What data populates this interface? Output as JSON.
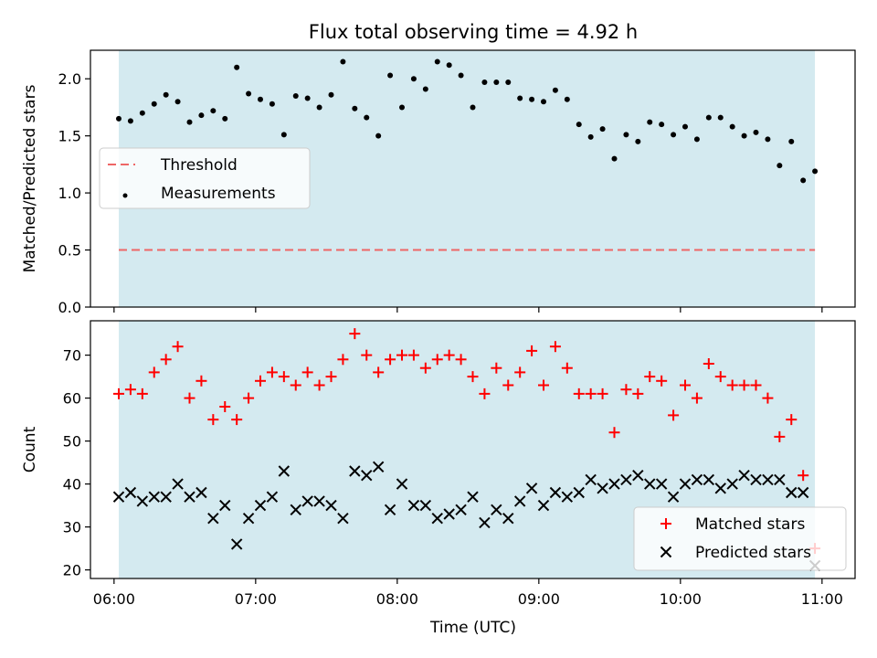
{
  "chart_data": {
    "title": "Flux total observing time = 4.92 h",
    "xlabel": "Time (UTC)",
    "x_ticks": [
      "06:00",
      "07:00",
      "08:00",
      "09:00",
      "10:00",
      "11:00"
    ],
    "xlim": [
      "05:50",
      "11:14"
    ],
    "observing_window": [
      "06:02",
      "10:57"
    ],
    "colors": {
      "window": "#d4eaf0",
      "threshold": "#ee6666",
      "measurements": "#000000",
      "matched": "#ff0000",
      "predicted": "#000000"
    },
    "panels": [
      {
        "type": "scatter",
        "ylabel": "Matched/Predicted stars",
        "ylim": [
          0.0,
          2.25
        ],
        "y_ticks": [
          "0.0",
          "0.5",
          "1.0",
          "1.5",
          "2.0"
        ],
        "legend_position": "center-left",
        "threshold": {
          "name": "Threshold",
          "value": 0.5,
          "x": [
            "06:02",
            "10:57"
          ]
        },
        "series": [
          {
            "name": "Measurements",
            "marker": "dot",
            "points": [
              [
                "06:02",
                1.65
              ],
              [
                "06:07",
                1.63
              ],
              [
                "06:12",
                1.7
              ],
              [
                "06:17",
                1.78
              ],
              [
                "06:22",
                1.86
              ],
              [
                "06:27",
                1.8
              ],
              [
                "06:32",
                1.62
              ],
              [
                "06:37",
                1.68
              ],
              [
                "06:42",
                1.72
              ],
              [
                "06:47",
                1.65
              ],
              [
                "06:52",
                2.1
              ],
              [
                "06:57",
                1.87
              ],
              [
                "07:02",
                1.82
              ],
              [
                "07:07",
                1.78
              ],
              [
                "07:12",
                1.51
              ],
              [
                "07:17",
                1.85
              ],
              [
                "07:22",
                1.83
              ],
              [
                "07:27",
                1.75
              ],
              [
                "07:32",
                1.86
              ],
              [
                "07:37",
                2.15
              ],
              [
                "07:42",
                1.74
              ],
              [
                "07:47",
                1.66
              ],
              [
                "07:52",
                1.5
              ],
              [
                "07:57",
                2.03
              ],
              [
                "08:02",
                1.75
              ],
              [
                "08:07",
                2.0
              ],
              [
                "08:12",
                1.91
              ],
              [
                "08:17",
                2.15
              ],
              [
                "08:22",
                2.12
              ],
              [
                "08:27",
                2.03
              ],
              [
                "08:32",
                1.75
              ],
              [
                "08:37",
                1.97
              ],
              [
                "08:42",
                1.97
              ],
              [
                "08:47",
                1.97
              ],
              [
                "08:52",
                1.83
              ],
              [
                "08:57",
                1.82
              ],
              [
                "09:02",
                1.8
              ],
              [
                "09:07",
                1.9
              ],
              [
                "09:12",
                1.82
              ],
              [
                "09:17",
                1.6
              ],
              [
                "09:22",
                1.49
              ],
              [
                "09:27",
                1.56
              ],
              [
                "09:32",
                1.3
              ],
              [
                "09:37",
                1.51
              ],
              [
                "09:42",
                1.45
              ],
              [
                "09:47",
                1.62
              ],
              [
                "09:52",
                1.6
              ],
              [
                "09:57",
                1.51
              ],
              [
                "10:02",
                1.58
              ],
              [
                "10:07",
                1.47
              ],
              [
                "10:12",
                1.66
              ],
              [
                "10:17",
                1.66
              ],
              [
                "10:22",
                1.58
              ],
              [
                "10:27",
                1.5
              ],
              [
                "10:32",
                1.53
              ],
              [
                "10:37",
                1.47
              ],
              [
                "10:42",
                1.24
              ],
              [
                "10:47",
                1.45
              ],
              [
                "10:52",
                1.11
              ],
              [
                "10:57",
                1.19
              ]
            ]
          }
        ]
      },
      {
        "type": "scatter",
        "ylabel": "Count",
        "ylim": [
          18,
          78
        ],
        "y_ticks": [
          "20",
          "30",
          "40",
          "50",
          "60",
          "70"
        ],
        "legend_position": "lower-right",
        "series": [
          {
            "name": "Matched stars",
            "marker": "plus",
            "points": [
              [
                "06:02",
                61
              ],
              [
                "06:07",
                62
              ],
              [
                "06:12",
                61
              ],
              [
                "06:17",
                66
              ],
              [
                "06:22",
                69
              ],
              [
                "06:27",
                72
              ],
              [
                "06:32",
                60
              ],
              [
                "06:37",
                64
              ],
              [
                "06:42",
                55
              ],
              [
                "06:47",
                58
              ],
              [
                "06:52",
                55
              ],
              [
                "06:57",
                60
              ],
              [
                "07:02",
                64
              ],
              [
                "07:07",
                66
              ],
              [
                "07:12",
                65
              ],
              [
                "07:17",
                63
              ],
              [
                "07:22",
                66
              ],
              [
                "07:27",
                63
              ],
              [
                "07:32",
                65
              ],
              [
                "07:37",
                69
              ],
              [
                "07:42",
                75
              ],
              [
                "07:47",
                70
              ],
              [
                "07:52",
                66
              ],
              [
                "07:57",
                69
              ],
              [
                "08:02",
                70
              ],
              [
                "08:07",
                70
              ],
              [
                "08:12",
                67
              ],
              [
                "08:17",
                69
              ],
              [
                "08:22",
                70
              ],
              [
                "08:27",
                69
              ],
              [
                "08:32",
                65
              ],
              [
                "08:37",
                61
              ],
              [
                "08:42",
                67
              ],
              [
                "08:47",
                63
              ],
              [
                "08:52",
                66
              ],
              [
                "08:57",
                71
              ],
              [
                "09:02",
                63
              ],
              [
                "09:07",
                72
              ],
              [
                "09:12",
                67
              ],
              [
                "09:17",
                61
              ],
              [
                "09:22",
                61
              ],
              [
                "09:27",
                61
              ],
              [
                "09:32",
                52
              ],
              [
                "09:37",
                62
              ],
              [
                "09:42",
                61
              ],
              [
                "09:47",
                65
              ],
              [
                "09:52",
                64
              ],
              [
                "09:57",
                56
              ],
              [
                "10:02",
                63
              ],
              [
                "10:07",
                60
              ],
              [
                "10:12",
                68
              ],
              [
                "10:17",
                65
              ],
              [
                "10:22",
                63
              ],
              [
                "10:27",
                63
              ],
              [
                "10:32",
                63
              ],
              [
                "10:37",
                60
              ],
              [
                "10:42",
                51
              ],
              [
                "10:47",
                55
              ],
              [
                "10:52",
                42
              ],
              [
                "10:57",
                25
              ]
            ]
          },
          {
            "name": "Predicted stars",
            "marker": "x",
            "points": [
              [
                "06:02",
                37
              ],
              [
                "06:07",
                38
              ],
              [
                "06:12",
                36
              ],
              [
                "06:17",
                37
              ],
              [
                "06:22",
                37
              ],
              [
                "06:27",
                40
              ],
              [
                "06:32",
                37
              ],
              [
                "06:37",
                38
              ],
              [
                "06:42",
                32
              ],
              [
                "06:47",
                35
              ],
              [
                "06:52",
                26
              ],
              [
                "06:57",
                32
              ],
              [
                "07:02",
                35
              ],
              [
                "07:07",
                37
              ],
              [
                "07:12",
                43
              ],
              [
                "07:17",
                34
              ],
              [
                "07:22",
                36
              ],
              [
                "07:27",
                36
              ],
              [
                "07:32",
                35
              ],
              [
                "07:37",
                32
              ],
              [
                "07:42",
                43
              ],
              [
                "07:47",
                42
              ],
              [
                "07:52",
                44
              ],
              [
                "07:57",
                34
              ],
              [
                "08:02",
                40
              ],
              [
                "08:07",
                35
              ],
              [
                "08:12",
                35
              ],
              [
                "08:17",
                32
              ],
              [
                "08:22",
                33
              ],
              [
                "08:27",
                34
              ],
              [
                "08:32",
                37
              ],
              [
                "08:37",
                31
              ],
              [
                "08:42",
                34
              ],
              [
                "08:47",
                32
              ],
              [
                "08:52",
                36
              ],
              [
                "08:57",
                39
              ],
              [
                "09:02",
                35
              ],
              [
                "09:07",
                38
              ],
              [
                "09:12",
                37
              ],
              [
                "09:17",
                38
              ],
              [
                "09:22",
                41
              ],
              [
                "09:27",
                39
              ],
              [
                "09:32",
                40
              ],
              [
                "09:37",
                41
              ],
              [
                "09:42",
                42
              ],
              [
                "09:47",
                40
              ],
              [
                "09:52",
                40
              ],
              [
                "09:57",
                37
              ],
              [
                "10:02",
                40
              ],
              [
                "10:07",
                41
              ],
              [
                "10:12",
                41
              ],
              [
                "10:17",
                39
              ],
              [
                "10:22",
                40
              ],
              [
                "10:27",
                42
              ],
              [
                "10:32",
                41
              ],
              [
                "10:37",
                41
              ],
              [
                "10:42",
                41
              ],
              [
                "10:47",
                38
              ],
              [
                "10:52",
                38
              ],
              [
                "10:57",
                21
              ]
            ]
          }
        ]
      }
    ]
  }
}
